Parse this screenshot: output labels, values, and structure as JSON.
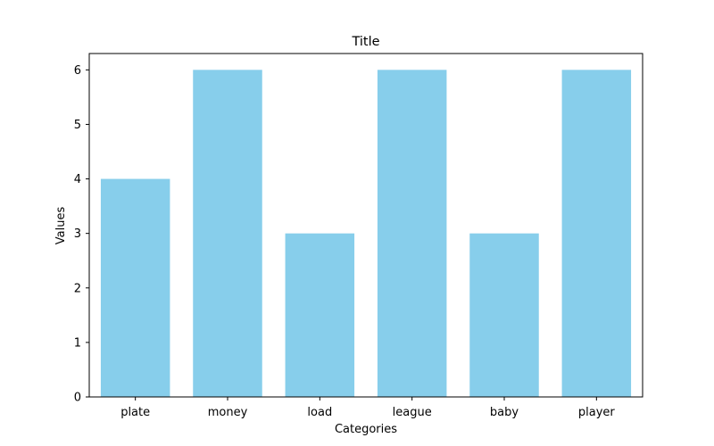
{
  "chart_data": {
    "type": "bar",
    "title": "Title",
    "xlabel": "Categories",
    "ylabel": "Values",
    "categories": [
      "plate",
      "money",
      "load",
      "league",
      "baby",
      "player"
    ],
    "values": [
      4,
      6,
      3,
      6,
      3,
      6
    ],
    "ylim": [
      0,
      6.3
    ],
    "yticks": [
      0,
      1,
      2,
      3,
      4,
      5,
      6
    ],
    "grid": false,
    "bar_color": "#87CEEB",
    "axis_color": "#000000"
  }
}
